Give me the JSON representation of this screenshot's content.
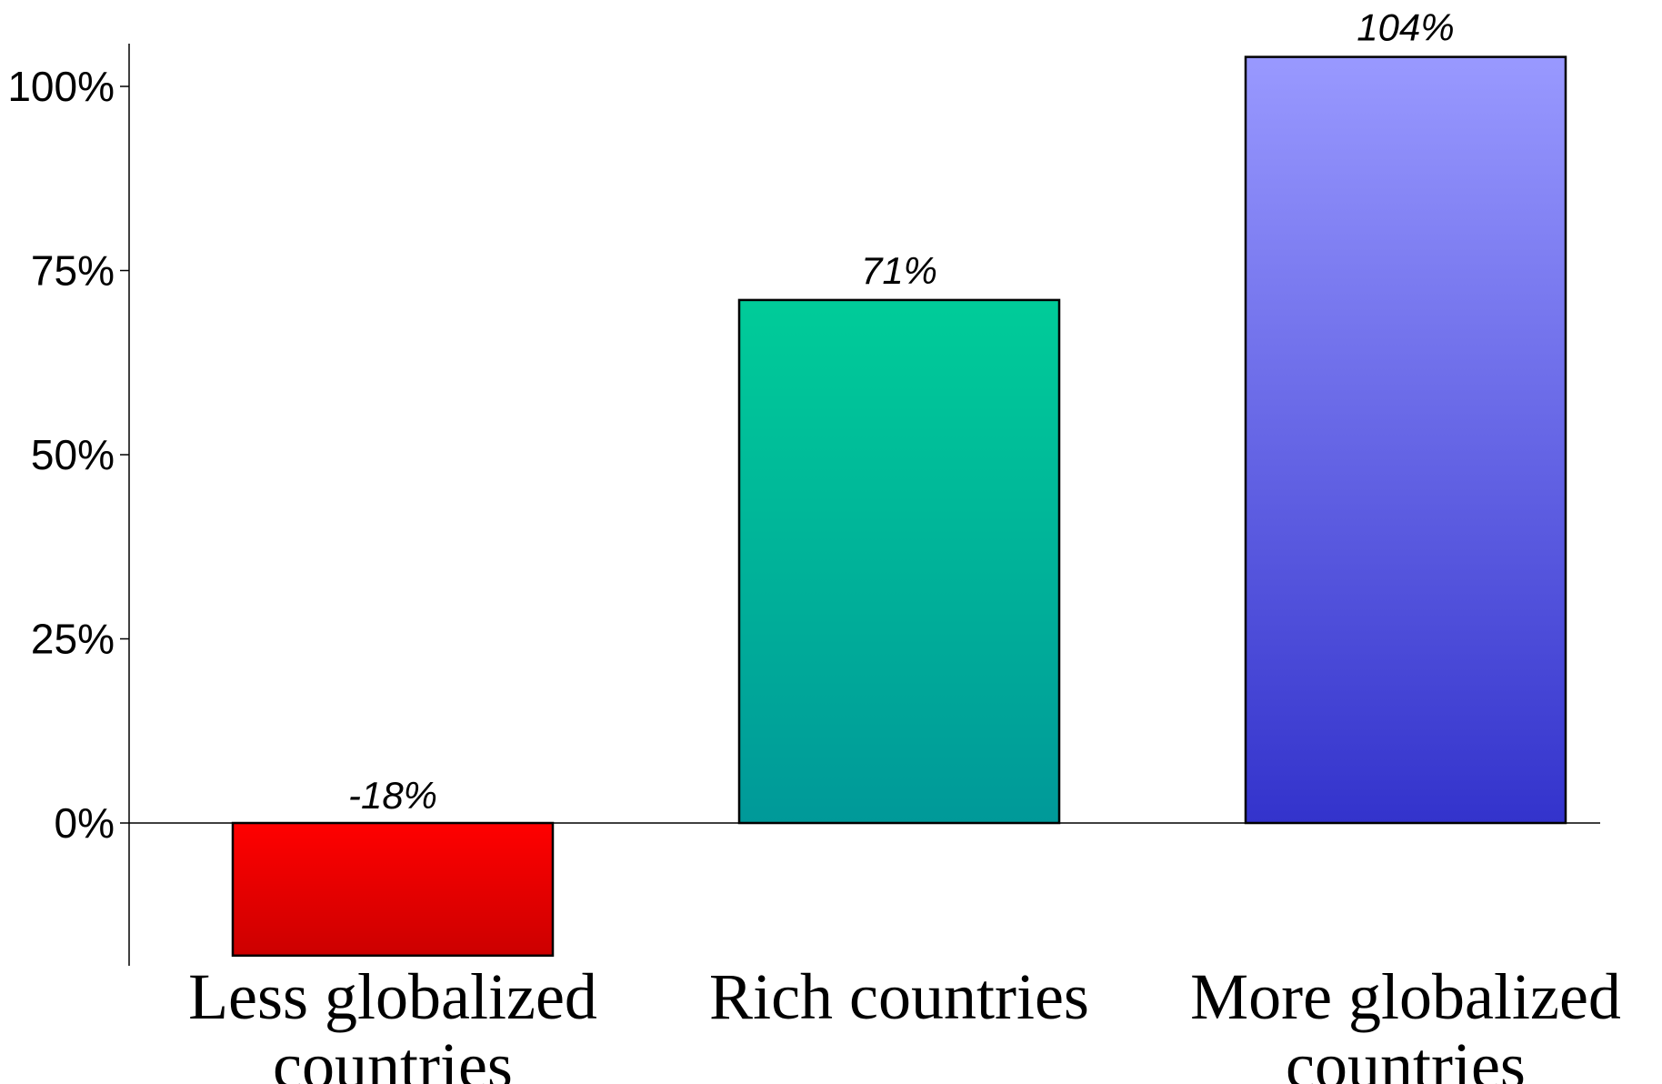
{
  "chart_data": {
    "type": "bar",
    "categories": [
      [
        "Less globalized",
        "countries"
      ],
      [
        "Rich countries"
      ],
      [
        "More globalized",
        "countries"
      ]
    ],
    "values": [
      -18,
      71,
      104
    ],
    "data_labels": [
      "-18%",
      "71%",
      "104%"
    ],
    "title": "",
    "xlabel": "",
    "ylabel": "",
    "ylim": [
      -18,
      106
    ],
    "yticks": [
      0,
      25,
      50,
      75,
      100
    ],
    "ytick_labels": [
      "0%",
      "25%",
      "50%",
      "75%",
      "100%"
    ],
    "grid": false,
    "legend": "none",
    "bar_colors": [
      {
        "top": "#ff0000",
        "bottom": "#cc0000"
      },
      {
        "top": "#00cc99",
        "bottom": "#009999"
      },
      {
        "top": "#9999ff",
        "bottom": "#3333cc"
      }
    ]
  }
}
